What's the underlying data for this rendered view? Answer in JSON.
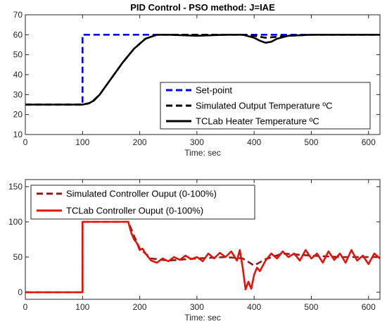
{
  "chart_data": [
    {
      "type": "line",
      "title": "PID Control - PSO method: J=IAE",
      "xlabel": "Time: sec",
      "ylabel": "",
      "xlim": [
        0,
        620
      ],
      "ylim": [
        10,
        70
      ],
      "xticks": [
        0,
        100,
        200,
        300,
        400,
        500,
        600
      ],
      "yticks": [
        10,
        20,
        30,
        40,
        50,
        60,
        70
      ],
      "legend_position": "bottom-right",
      "series": [
        {
          "name": "Set-point",
          "color": "#0000ee",
          "style": "dashed",
          "x": [
            0,
            100,
            100,
            620
          ],
          "y": [
            25,
            25,
            60,
            60
          ]
        },
        {
          "name": "Simulated Output Temperature ºC",
          "color": "#000000",
          "style": "dashed",
          "x": [
            0,
            100,
            115,
            130,
            150,
            170,
            190,
            210,
            230,
            250,
            300,
            350,
            380,
            400,
            420,
            440,
            460,
            500,
            550,
            620
          ],
          "y": [
            25,
            25,
            26,
            30,
            38,
            46,
            53,
            58,
            60,
            60,
            60,
            60,
            60,
            59.5,
            58.5,
            59,
            59.5,
            60,
            60,
            60
          ]
        },
        {
          "name": "TCLab Heater Temperature ºC",
          "color": "#000000",
          "style": "solid",
          "x": [
            0,
            100,
            110,
            120,
            130,
            150,
            170,
            190,
            210,
            230,
            250,
            300,
            350,
            380,
            400,
            410,
            420,
            430,
            440,
            460,
            500,
            550,
            620
          ],
          "y": [
            25,
            25,
            25.5,
            27,
            30,
            38,
            46,
            53,
            58,
            60,
            60,
            59.5,
            60,
            60,
            58.5,
            57,
            56,
            56.5,
            58,
            59.5,
            60,
            60,
            60
          ]
        }
      ]
    },
    {
      "type": "line",
      "title": "",
      "xlabel": "Time: sec",
      "ylabel": "",
      "xlim": [
        0,
        620
      ],
      "ylim": [
        -10,
        160
      ],
      "xticks": [
        0,
        100,
        200,
        300,
        400,
        500,
        600
      ],
      "yticks": [
        0,
        50,
        100,
        150
      ],
      "legend_position": "top-left",
      "series": [
        {
          "name": "Simulated Controller Ouput (0-100%)",
          "color": "#8b1a1a",
          "style": "dashed",
          "x": [
            0,
            100,
            100,
            180,
            190,
            200,
            220,
            250,
            300,
            350,
            380,
            400,
            420,
            450,
            500,
            550,
            620
          ],
          "y": [
            0,
            0,
            100,
            100,
            80,
            62,
            48,
            45,
            48,
            50,
            48,
            38,
            47,
            55,
            52,
            50,
            50
          ]
        },
        {
          "name": "TCLab Controller Ouput (0-100%)",
          "color": "#e3120b",
          "style": "solid",
          "x": [
            0,
            100,
            100,
            180,
            185,
            190,
            195,
            200,
            205,
            210,
            215,
            220,
            230,
            240,
            250,
            260,
            270,
            280,
            290,
            300,
            310,
            320,
            330,
            340,
            350,
            360,
            370,
            375,
            380,
            385,
            390,
            395,
            400,
            405,
            410,
            420,
            430,
            440,
            450,
            460,
            470,
            480,
            490,
            500,
            510,
            520,
            530,
            540,
            550,
            560,
            570,
            580,
            590,
            600,
            610,
            620
          ],
          "y": [
            0,
            0,
            100,
            100,
            85,
            75,
            70,
            60,
            62,
            55,
            50,
            45,
            42,
            48,
            44,
            50,
            46,
            52,
            47,
            50,
            44,
            55,
            48,
            56,
            50,
            58,
            45,
            60,
            35,
            4,
            15,
            5,
            25,
            35,
            30,
            45,
            55,
            48,
            58,
            50,
            55,
            45,
            60,
            48,
            55,
            42,
            58,
            46,
            55,
            42,
            60,
            45,
            52,
            40,
            55,
            48
          ]
        }
      ]
    }
  ]
}
